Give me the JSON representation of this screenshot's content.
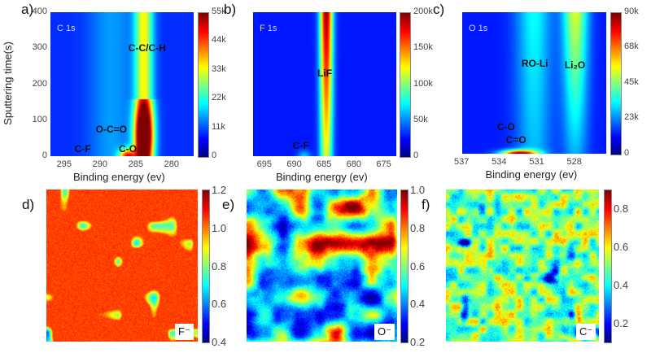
{
  "chart_data": [
    {
      "panel": "a)",
      "type": "heatmap",
      "core_level": "C 1s",
      "xlabel": "Binding energy (ev)",
      "ylabel": "Sputtering time(s)",
      "xlim": [
        297,
        277
      ],
      "ylim": [
        0,
        400
      ],
      "xticks": [
        "295",
        "290",
        "285",
        "280"
      ],
      "xtick_values": [
        295,
        290,
        285,
        280
      ],
      "yticks": [
        "0",
        "100",
        "200",
        "300",
        "400"
      ],
      "ytick_values": [
        0,
        100,
        200,
        300,
        400
      ],
      "colorbar": {
        "range": [
          0,
          55000
        ],
        "ticks": [
          "0",
          "11k",
          "22k",
          "33k",
          "44k",
          "55k"
        ],
        "tick_values": [
          0,
          11000,
          22000,
          33000,
          44000,
          55000
        ],
        "colormap": "jet"
      },
      "annotations": [
        {
          "text": "C-C/C-H",
          "x": 283.5,
          "y": 300
        },
        {
          "text": "O-C=O",
          "x": 288.5,
          "y": 75
        },
        {
          "text": "C-O",
          "x": 286.2,
          "y": 20
        },
        {
          "text": "C-F",
          "x": 292.5,
          "y": 20
        }
      ]
    },
    {
      "panel": "b)",
      "type": "heatmap",
      "core_level": "F 1s",
      "xlabel": "Binding energy (ev)",
      "xlim": [
        697,
        673
      ],
      "ylim": [
        0,
        400
      ],
      "xticks": [
        "695",
        "690",
        "685",
        "680",
        "675"
      ],
      "xtick_values": [
        695,
        690,
        685,
        680,
        675
      ],
      "colorbar": {
        "range": [
          0,
          200000
        ],
        "ticks": [
          "0",
          "50k",
          "100k",
          "150k",
          "200k"
        ],
        "tick_values": [
          0,
          50000,
          100000,
          150000,
          200000
        ],
        "colormap": "jet"
      },
      "annotations": [
        {
          "text": "LiF",
          "x": 685,
          "y": 230
        },
        {
          "text": "C-F",
          "x": 689,
          "y": 30
        }
      ]
    },
    {
      "panel": "c)",
      "type": "heatmap",
      "core_level": "O 1s",
      "xlabel": "Binding energy (ev)",
      "xlim": [
        537,
        525.5
      ],
      "ylim": [
        0,
        400
      ],
      "xticks": [
        "537",
        "534",
        "531",
        "528"
      ],
      "xtick_values": [
        537,
        534,
        531,
        528
      ],
      "colorbar": {
        "range": [
          0,
          90000
        ],
        "ticks": [
          "0",
          "23k",
          "45k",
          "68k",
          "90k"
        ],
        "tick_values": [
          0,
          23000,
          45000,
          68000,
          90000
        ],
        "colormap": "jet"
      },
      "annotations": [
        {
          "text": "RO-Li",
          "x": 531.2,
          "y": 255
        },
        {
          "text": "Li₂O",
          "x": 528,
          "y": 250
        },
        {
          "text": "C-O",
          "x": 533.5,
          "y": 75
        },
        {
          "text": "C=O",
          "x": 532.7,
          "y": 40
        }
      ]
    },
    {
      "panel": "d)",
      "type": "heatmap",
      "ion": "F⁻",
      "colorbar": {
        "range": [
          0.4,
          1.2
        ],
        "ticks": [
          "1.2",
          "1.0",
          "0.8",
          "0.6",
          "0.4"
        ],
        "tick_values": [
          1.2,
          1.0,
          0.8,
          0.6,
          0.4
        ],
        "colormap": "jet"
      }
    },
    {
      "panel": "e)",
      "type": "heatmap",
      "ion": "O⁻",
      "colorbar": {
        "range": [
          0.2,
          1.0
        ],
        "ticks": [
          "1.0",
          "0.8",
          "0.6",
          "0.4",
          "0.2"
        ],
        "tick_values": [
          1.0,
          0.8,
          0.6,
          0.4,
          0.2
        ],
        "colormap": "jet"
      }
    },
    {
      "panel": "f)",
      "type": "heatmap",
      "ion": "C⁻",
      "colorbar": {
        "range": [
          0.1,
          0.9
        ],
        "ticks": [
          "0.8",
          "0.6",
          "0.4",
          "0.2"
        ],
        "tick_values": [
          0.8,
          0.6,
          0.4,
          0.2
        ],
        "colormap": "jet"
      }
    }
  ]
}
